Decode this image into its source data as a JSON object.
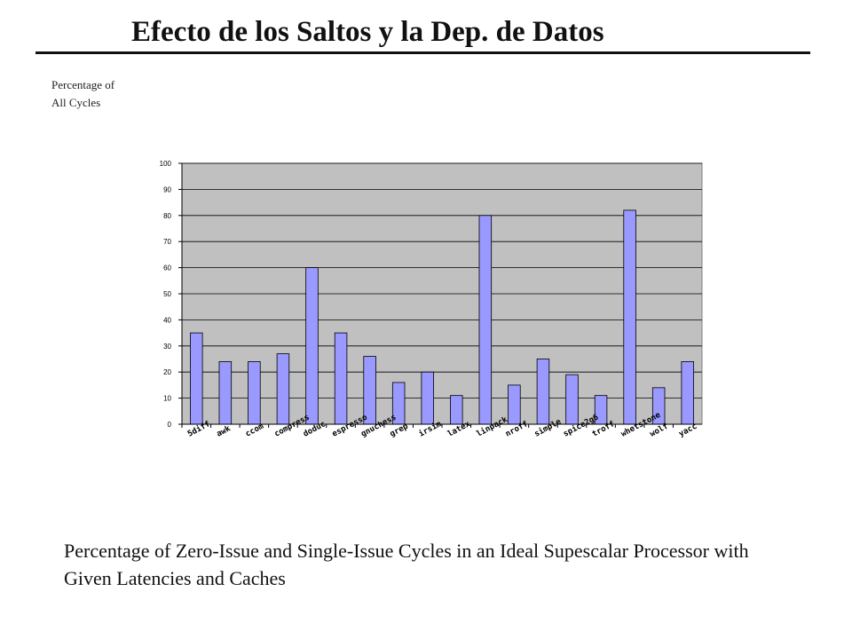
{
  "title": "Efecto de los Saltos y la Dep. de Datos",
  "y_axis_title": [
    "Percentage of",
    "All Cycles"
  ],
  "caption": "Percentage of Zero-Issue and Single-Issue Cycles in an Ideal Supescalar Processor with Given Latencies and Caches",
  "chart_data": {
    "type": "bar",
    "categories": [
      "5diff",
      "awk",
      "ccom",
      "compress",
      "doduc",
      "espresso",
      "gnuchess",
      "grep",
      "irsim",
      "latex",
      "linpack",
      "nroff",
      "simple",
      "spice2g6",
      "troff",
      "whetstone",
      "wolf",
      "yacc"
    ],
    "values": [
      35,
      24,
      24,
      27,
      60,
      35,
      26,
      16,
      20,
      11,
      80,
      15,
      25,
      19,
      11,
      82,
      14,
      24
    ],
    "ylim": [
      0,
      100
    ],
    "yticks": [
      0,
      10,
      20,
      30,
      40,
      50,
      60,
      70,
      80,
      90,
      100
    ],
    "grid": true,
    "colors": {
      "bar": "#9999ff",
      "plot_bg": "#c0c0c0",
      "bar_stroke": "#000000"
    }
  }
}
